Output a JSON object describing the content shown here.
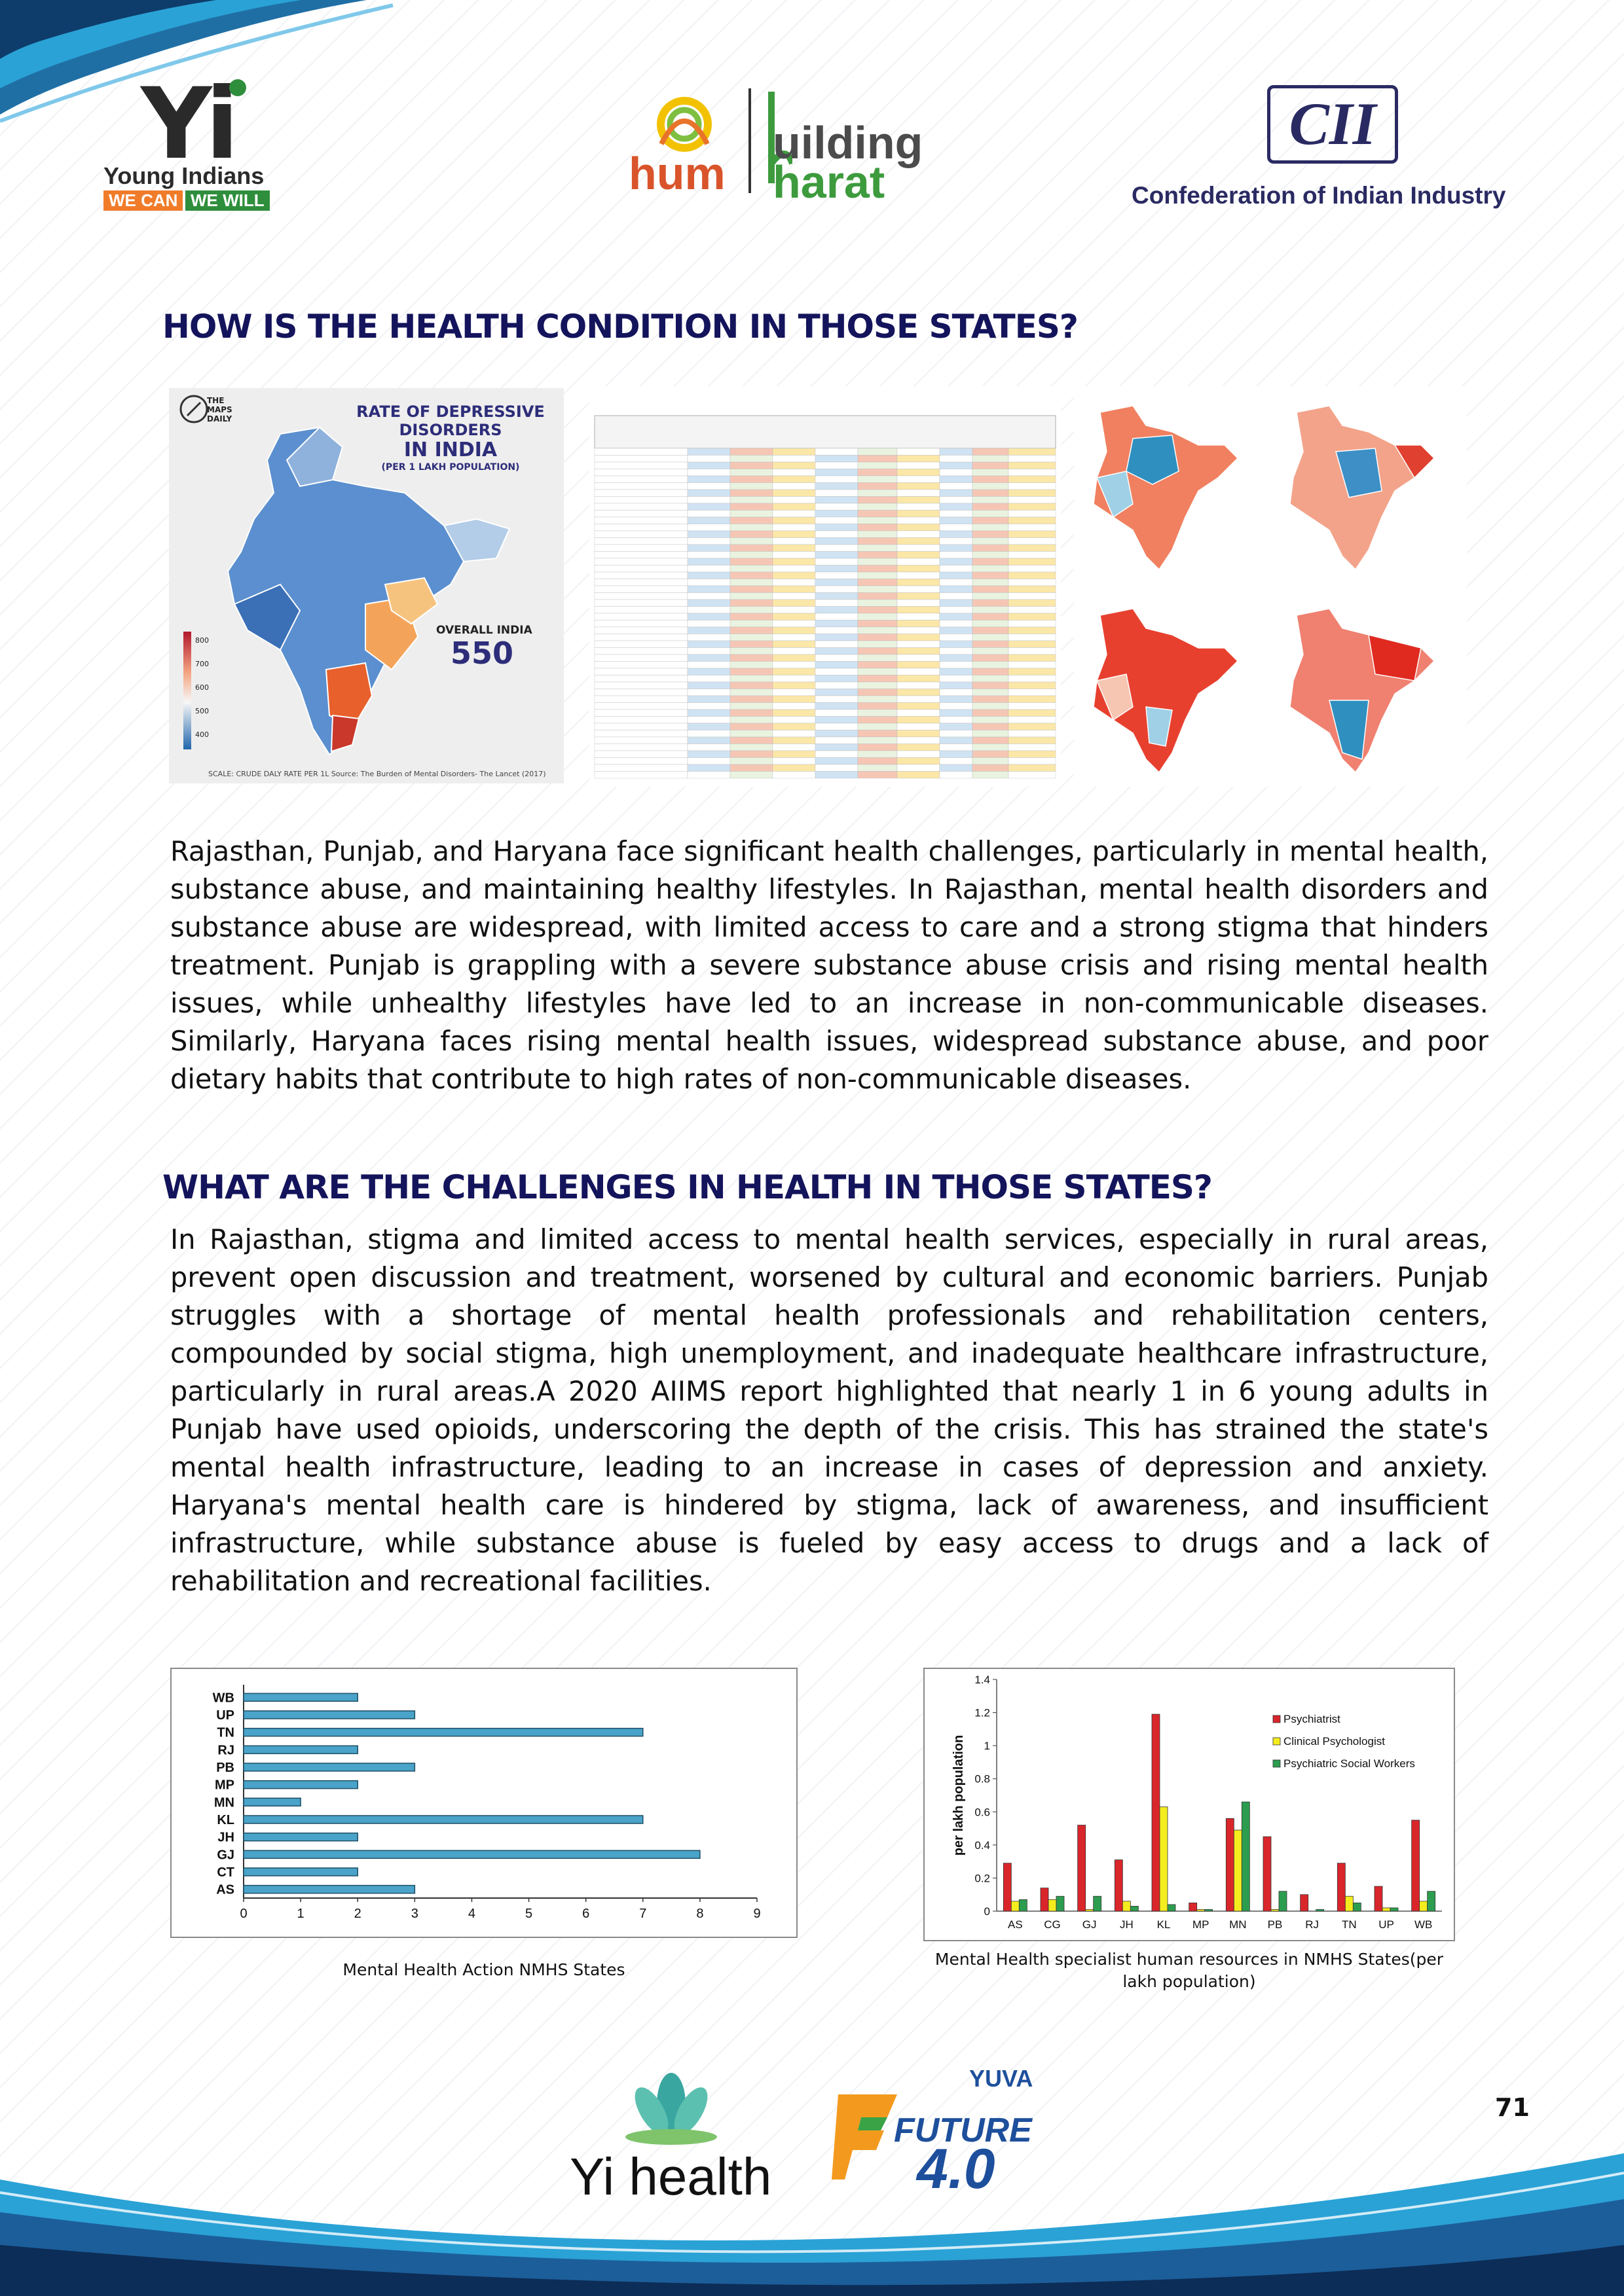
{
  "header": {
    "yi_logo": {
      "mark": "Yi",
      "name": "Young Indians",
      "tag1": "WE CAN",
      "tag2": "WE WILL"
    },
    "hum_logo": {
      "hum": "hum",
      "building": "uilding",
      "bharat": "harat"
    },
    "cii_logo": {
      "mark": "CII",
      "name": "Confederation of Indian Industry"
    }
  },
  "section1": {
    "heading": "HOW IS THE HEALTH CONDITION IN THOSE STATES?",
    "map": {
      "publisher": "THE MAPS DAILY",
      "title_line1": "RATE OF DEPRESSIVE",
      "title_line2": "DISORDERS",
      "title_line3": "IN INDIA",
      "subtitle": "(PER 1 LAKH POPULATION)",
      "overall_label": "OVERALL INDIA",
      "overall_value": "550",
      "footer": "SCALE: CRUDE DALY RATE PER 1L    Source: The Burden of Mental Disorders- The Lancet (2017)",
      "scale_ticks": [
        "800",
        "700",
        "600",
        "500",
        "400"
      ]
    },
    "paragraph": "Rajasthan, Punjab, and Haryana face significant health challenges, particularly in mental health, substance abuse, and maintaining healthy lifestyles. In Rajasthan, mental health disorders and substance abuse are widespread, with limited access to care and a strong stigma that hinders treatment. Punjab is grappling with a severe substance abuse crisis and rising mental health issues, while unhealthy lifestyles have led to an increase in non-communicable diseases. Similarly, Haryana faces rising mental health issues, widespread substance abuse, and poor dietary habits that contribute to high rates of non-communicable diseases."
  },
  "section2": {
    "heading": "WHAT ARE THE CHALLENGES IN HEALTH IN THOSE STATES?",
    "paragraph": "In Rajasthan, stigma and limited access to mental health services, especially in rural areas, prevent open discussion and treatment, worsened by cultural and economic barriers. Punjab struggles with a shortage of mental health professionals and rehabilitation centers, compounded by social stigma, high unemployment, and inadequate healthcare infrastructure, particularly in rural areas.A 2020 AIIMS report highlighted that nearly 1 in 6 young adults in Punjab have used opioids, underscoring the depth of the crisis. This has strained the state's mental health infrastructure, leading to an increase in cases of depression and anxiety. Haryana's mental health care is hindered by stigma, lack of awareness, and insufficient infrastructure, while substance abuse is fueled by easy access to drugs and a lack of rehabilitation and recreational facilities."
  },
  "chart_data": [
    {
      "type": "bar",
      "orientation": "horizontal",
      "caption": "Mental Health Action NMHS States",
      "categories": [
        "WB",
        "UP",
        "TN",
        "RJ",
        "PB",
        "MP",
        "MN",
        "KL",
        "JH",
        "GJ",
        "CT",
        "AS"
      ],
      "values": [
        2,
        3,
        7,
        2,
        3,
        2,
        1,
        7,
        2,
        8,
        2,
        3
      ],
      "xlim": [
        0,
        9
      ],
      "xticks": [
        "0",
        "1",
        "2",
        "3",
        "4",
        "5",
        "6",
        "7",
        "8",
        "9"
      ],
      "color": "#4aa3c9",
      "grid": false
    },
    {
      "type": "bar",
      "caption": "Mental Health specialist human resources in NMHS States(per lakh population)",
      "ylabel": "per lakh population",
      "categories": [
        "AS",
        "CG",
        "GJ",
        "JH",
        "KL",
        "MP",
        "MN",
        "PB",
        "RJ",
        "TN",
        "UP",
        "WB"
      ],
      "ylim": [
        0,
        1.4
      ],
      "yticks": [
        "0",
        "0.2",
        "0.4",
        "0.6",
        "0.8",
        "1",
        "1.2",
        "1.4"
      ],
      "legend_position": "top-right",
      "series": [
        {
          "name": "Psychiatrist",
          "color": "#d9262b",
          "values": [
            0.29,
            0.14,
            0.52,
            0.31,
            1.19,
            0.05,
            0.56,
            0.45,
            0.1,
            0.29,
            0.15,
            0.55
          ]
        },
        {
          "name": "Clinical Psychologist",
          "color": "#f5ec1f",
          "values": [
            0.06,
            0.07,
            0.01,
            0.06,
            0.63,
            0.01,
            0.49,
            0.01,
            0.0,
            0.09,
            0.02,
            0.06
          ]
        },
        {
          "name": "Psychiatric  Social Workers",
          "color": "#2c9d4f",
          "values": [
            0.07,
            0.09,
            0.09,
            0.03,
            0.04,
            0.01,
            0.66,
            0.12,
            0.01,
            0.05,
            0.02,
            0.12
          ]
        }
      ]
    }
  ],
  "footer": {
    "yi_health": "Yi health",
    "future": "FUTURE",
    "future_version": "4.0",
    "yuva": "YUVA",
    "page_number": "71"
  }
}
